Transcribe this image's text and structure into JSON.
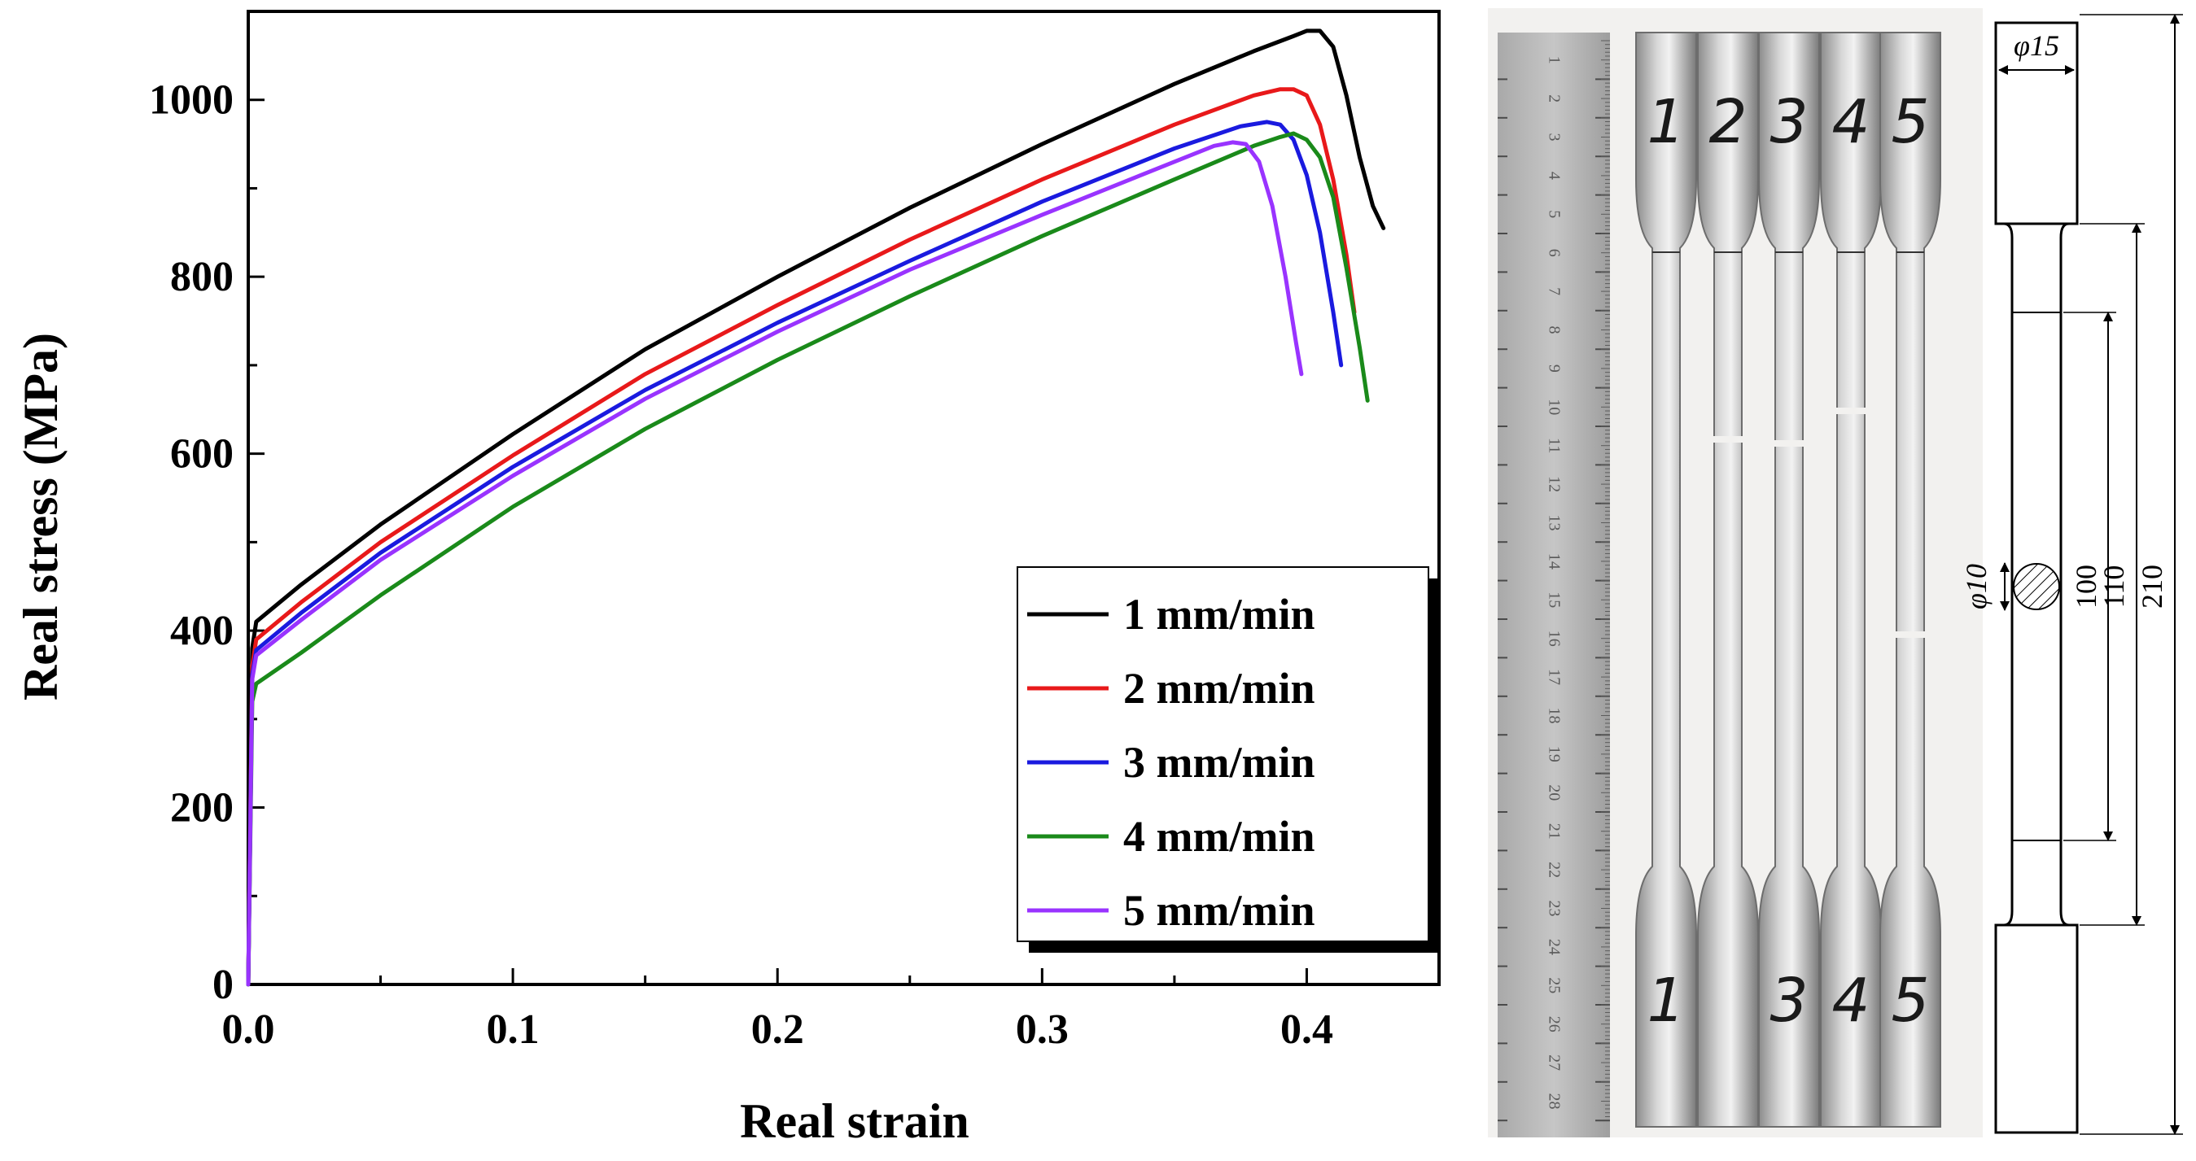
{
  "chart_data": {
    "type": "line",
    "title": "",
    "xlabel": "Real strain",
    "ylabel": "Real stress (MPa)",
    "xlim": [
      0,
      0.45
    ],
    "ylim": [
      0,
      1100
    ],
    "xticks": [
      0.0,
      0.1,
      0.2,
      0.3,
      0.4
    ],
    "xtick_labels": [
      "0.0",
      "0.1",
      "0.2",
      "0.3",
      "0.4"
    ],
    "yticks": [
      0,
      200,
      400,
      600,
      800,
      1000
    ],
    "ytick_labels": [
      "0",
      "200",
      "400",
      "600",
      "800",
      "1000"
    ],
    "legend_position": "bottom-right",
    "series": [
      {
        "name": "1 mm/min",
        "color": "#000000",
        "x": [
          0,
          0.0015,
          0.003,
          0.02,
          0.05,
          0.1,
          0.15,
          0.2,
          0.25,
          0.3,
          0.35,
          0.38,
          0.395,
          0.4,
          0.405,
          0.41,
          0.415,
          0.42,
          0.425,
          0.429
        ],
        "y": [
          0,
          380,
          410,
          452,
          520,
          622,
          718,
          800,
          878,
          950,
          1018,
          1055,
          1072,
          1078,
          1078,
          1060,
          1005,
          935,
          880,
          855
        ]
      },
      {
        "name": "2 mm/min",
        "color": "#e8191a",
        "x": [
          0,
          0.0015,
          0.003,
          0.02,
          0.05,
          0.1,
          0.15,
          0.2,
          0.25,
          0.3,
          0.35,
          0.38,
          0.39,
          0.395,
          0.4,
          0.405,
          0.41,
          0.415,
          0.418
        ],
        "y": [
          0,
          360,
          390,
          432,
          500,
          598,
          690,
          768,
          842,
          910,
          972,
          1005,
          1012,
          1012,
          1005,
          972,
          910,
          825,
          760
        ]
      },
      {
        "name": "3 mm/min",
        "color": "#1a1adf",
        "x": [
          0,
          0.0015,
          0.003,
          0.02,
          0.05,
          0.1,
          0.15,
          0.2,
          0.25,
          0.3,
          0.35,
          0.375,
          0.385,
          0.39,
          0.395,
          0.4,
          0.405,
          0.41,
          0.413
        ],
        "y": [
          0,
          350,
          378,
          420,
          488,
          585,
          672,
          748,
          818,
          885,
          945,
          970,
          975,
          972,
          955,
          915,
          850,
          760,
          700
        ]
      },
      {
        "name": "4 mm/min",
        "color": "#1a8a1a",
        "x": [
          0,
          0.0015,
          0.003,
          0.02,
          0.05,
          0.1,
          0.15,
          0.2,
          0.25,
          0.3,
          0.35,
          0.38,
          0.39,
          0.395,
          0.4,
          0.405,
          0.41,
          0.415,
          0.42,
          0.423
        ],
        "y": [
          0,
          320,
          340,
          375,
          440,
          540,
          628,
          706,
          778,
          846,
          910,
          948,
          958,
          962,
          955,
          935,
          890,
          810,
          720,
          660
        ]
      },
      {
        "name": "5 mm/min",
        "color": "#9933ff",
        "x": [
          0,
          0.0015,
          0.003,
          0.02,
          0.05,
          0.1,
          0.15,
          0.2,
          0.25,
          0.3,
          0.35,
          0.365,
          0.372,
          0.377,
          0.382,
          0.387,
          0.392,
          0.396,
          0.398
        ],
        "y": [
          0,
          345,
          372,
          412,
          480,
          575,
          662,
          738,
          808,
          870,
          930,
          948,
          952,
          950,
          930,
          880,
          800,
          725,
          690
        ]
      }
    ]
  },
  "photo": {
    "ruler_numbers": [
      "1",
      "2",
      "3",
      "4",
      "5",
      "6",
      "7",
      "8",
      "9",
      "10",
      "11",
      "12",
      "13",
      "14",
      "15",
      "16",
      "17",
      "18",
      "19",
      "20",
      "21",
      "22",
      "23",
      "24",
      "25",
      "26",
      "27",
      "28"
    ],
    "specimen_top_labels": [
      "1",
      "2",
      "3",
      "4",
      "5"
    ],
    "specimen_bottom_labels": [
      "1",
      "3",
      "4",
      "5"
    ]
  },
  "drawing": {
    "grip_diameter": "φ15",
    "gauge_diameter": "φ10",
    "dim_gauge": "100",
    "dim_reduced": "110",
    "dim_total": "210"
  }
}
